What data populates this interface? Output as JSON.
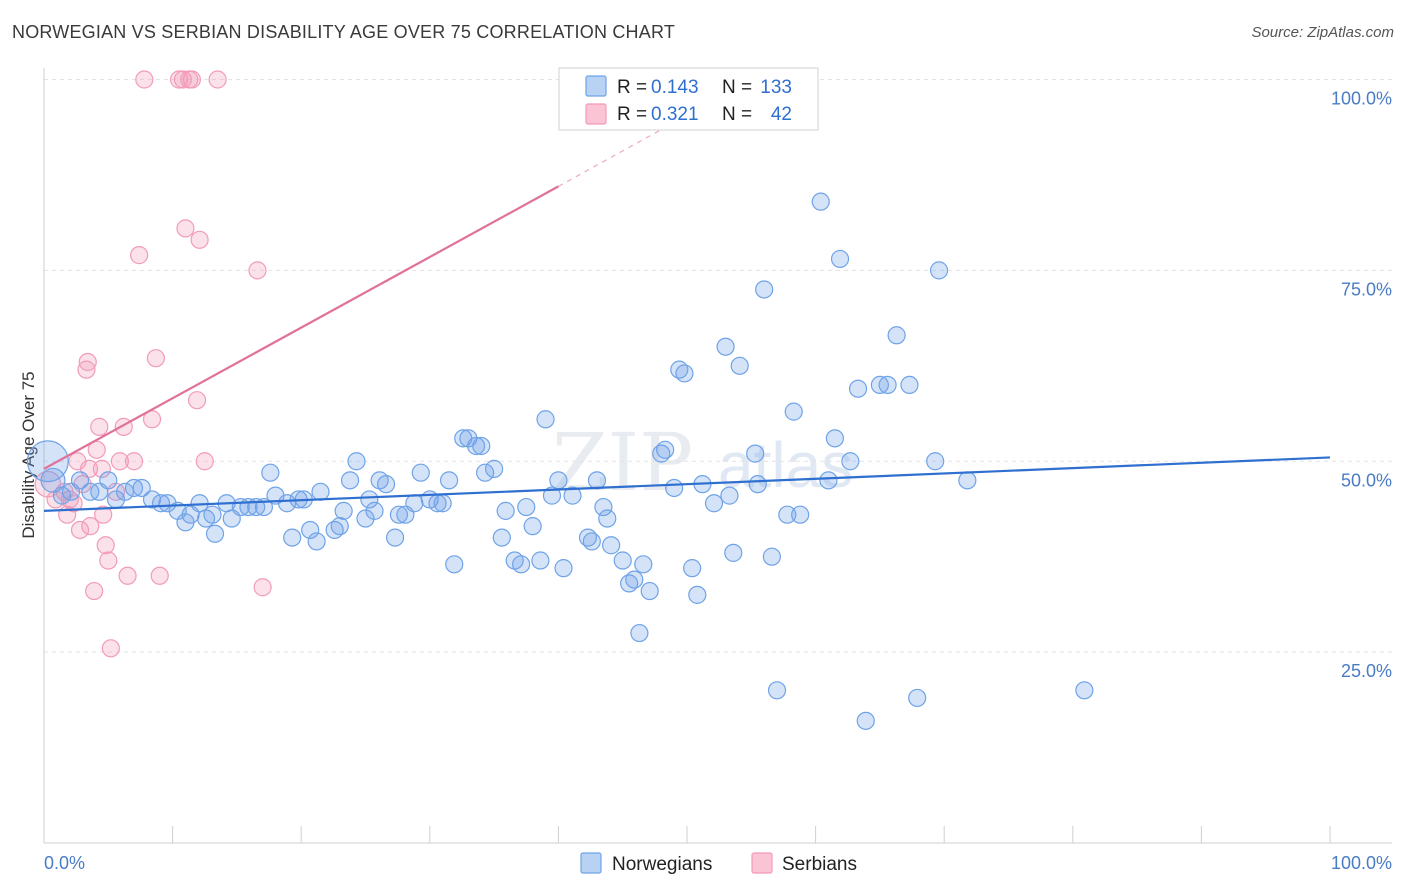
{
  "title": "NORWEGIAN VS SERBIAN DISABILITY AGE OVER 75 CORRELATION CHART",
  "source": "Source: ZipAtlas.com",
  "watermark": {
    "zip": "ZIP",
    "atlas": "atlas"
  },
  "legend": {
    "r_label": "R =",
    "n_label": "N =",
    "norwegians": {
      "r": "0.143",
      "n": "133"
    },
    "serbians": {
      "r": "0.321",
      "n": "42"
    }
  },
  "bottom_legend": {
    "norwegians": "Norwegians",
    "serbians": "Serbians"
  },
  "chart_data": {
    "type": "scatter",
    "title": "NORWEGIAN VS SERBIAN DISABILITY AGE OVER 75 CORRELATION CHART",
    "xlabel": "",
    "ylabel": "Disability Age Over 75",
    "xlim": [
      0,
      100
    ],
    "ylim": [
      0,
      103
    ],
    "x_tick_labels": [
      "0.0%",
      "100.0%"
    ],
    "y_ticks": [
      25,
      50,
      75,
      100
    ],
    "y_tick_labels": [
      "25.0%",
      "50.0%",
      "75.0%",
      "100.0%"
    ],
    "colors": {
      "norwegians": "#6fa3e8",
      "serbians": "#f29bb8",
      "norwegians_line": "#2f6fd0",
      "serbians_line": "#e0719a"
    },
    "series": [
      {
        "name": "Norwegians",
        "trend": {
          "x0": 0,
          "y0": 43.5,
          "x1": 100,
          "y1": 50.5
        },
        "points": [
          [
            0.3,
            50,
            2.4
          ],
          [
            0.7,
            47.5,
            1.4
          ],
          [
            1.4,
            45.5,
            1
          ],
          [
            2.1,
            46,
            1
          ],
          [
            2.8,
            47.5,
            1
          ],
          [
            3.6,
            46,
            1
          ],
          [
            4.3,
            46,
            1
          ],
          [
            5,
            47.5,
            1
          ],
          [
            5.6,
            45,
            1
          ],
          [
            6.3,
            46,
            1
          ],
          [
            7,
            46.5,
            1
          ],
          [
            7.6,
            46.5,
            1
          ],
          [
            8.4,
            45,
            1
          ],
          [
            9.1,
            44.5,
            1
          ],
          [
            9.6,
            44.5,
            1
          ],
          [
            10.4,
            43.5,
            1
          ],
          [
            11,
            42,
            1
          ],
          [
            11.4,
            43,
            1
          ],
          [
            12.1,
            44.5,
            1
          ],
          [
            12.6,
            42.5,
            1
          ],
          [
            13.1,
            43,
            1
          ],
          [
            13.3,
            40.5,
            1
          ],
          [
            14.2,
            44.5,
            1
          ],
          [
            14.6,
            42.5,
            1
          ],
          [
            15.3,
            44,
            1
          ],
          [
            15.9,
            44,
            1
          ],
          [
            16.5,
            44,
            1
          ],
          [
            17.1,
            44,
            1
          ],
          [
            17.6,
            48.5,
            1
          ],
          [
            18,
            45.5,
            1
          ],
          [
            18.9,
            44.5,
            1
          ],
          [
            19.3,
            40,
            1
          ],
          [
            19.8,
            45,
            1
          ],
          [
            20.2,
            45,
            1
          ],
          [
            20.7,
            41,
            1
          ],
          [
            21.2,
            39.5,
            1
          ],
          [
            21.5,
            46,
            1
          ],
          [
            22.6,
            41,
            1
          ],
          [
            23,
            41.5,
            1
          ],
          [
            23.3,
            43.5,
            1
          ],
          [
            23.8,
            47.5,
            1
          ],
          [
            24.3,
            50,
            1
          ],
          [
            25,
            42.5,
            1
          ],
          [
            25.3,
            45,
            1
          ],
          [
            25.7,
            43.5,
            1
          ],
          [
            26.1,
            47.5,
            1
          ],
          [
            26.6,
            47,
            1
          ],
          [
            27.3,
            40,
            1
          ],
          [
            27.6,
            43,
            1
          ],
          [
            28.1,
            43,
            1
          ],
          [
            28.8,
            44.5,
            1
          ],
          [
            29.3,
            48.5,
            1
          ],
          [
            30,
            45,
            1
          ],
          [
            30.6,
            44.5,
            1
          ],
          [
            31,
            44.5,
            1
          ],
          [
            31.5,
            47.5,
            1
          ],
          [
            31.9,
            36.5,
            1
          ],
          [
            32.6,
            53,
            1
          ],
          [
            33,
            53,
            1
          ],
          [
            33.6,
            52,
            1
          ],
          [
            34,
            52,
            1
          ],
          [
            34.3,
            48.5,
            1
          ],
          [
            35,
            49,
            1
          ],
          [
            35.6,
            40,
            1
          ],
          [
            35.9,
            43.5,
            1
          ],
          [
            36.6,
            37,
            1
          ],
          [
            37.1,
            36.5,
            1
          ],
          [
            37.5,
            44,
            1
          ],
          [
            38,
            41.5,
            1
          ],
          [
            38.6,
            37,
            1
          ],
          [
            39,
            55.5,
            1
          ],
          [
            39.5,
            45.5,
            1
          ],
          [
            40,
            47.5,
            1
          ],
          [
            40.4,
            36,
            1
          ],
          [
            41.1,
            45.5,
            1
          ],
          [
            42.3,
            40,
            1
          ],
          [
            42.6,
            39.5,
            1
          ],
          [
            43,
            47.5,
            1
          ],
          [
            43.5,
            44,
            1
          ],
          [
            43.8,
            42.5,
            1
          ],
          [
            44.1,
            39,
            1
          ],
          [
            45,
            37,
            1
          ],
          [
            45.5,
            34,
            1
          ],
          [
            45.9,
            34.5,
            1
          ],
          [
            46.3,
            27.5,
            1
          ],
          [
            46.6,
            36.5,
            1
          ],
          [
            47.1,
            33,
            1
          ],
          [
            48,
            51,
            1
          ],
          [
            48.3,
            51.5,
            1
          ],
          [
            49,
            46.5,
            1
          ],
          [
            49.4,
            62,
            1
          ],
          [
            49.8,
            61.5,
            1
          ],
          [
            50.4,
            36,
            1
          ],
          [
            50.8,
            32.5,
            1
          ],
          [
            51.2,
            47,
            1
          ],
          [
            52.1,
            44.5,
            1
          ],
          [
            53,
            65,
            1
          ],
          [
            53.3,
            45.5,
            1
          ],
          [
            53.6,
            38,
            1
          ],
          [
            54.1,
            62.5,
            1
          ],
          [
            55.3,
            51,
            1
          ],
          [
            55.5,
            47,
            1
          ],
          [
            56,
            72.5,
            1
          ],
          [
            56.6,
            37.5,
            1
          ],
          [
            57,
            20,
            1
          ],
          [
            57.8,
            43,
            1
          ],
          [
            58.3,
            56.5,
            1
          ],
          [
            58.8,
            43,
            1
          ],
          [
            60.4,
            84,
            1
          ],
          [
            61,
            47.5,
            1
          ],
          [
            61.5,
            53,
            1
          ],
          [
            61.9,
            76.5,
            1
          ],
          [
            62.7,
            50,
            1
          ],
          [
            63.9,
            16,
            1
          ],
          [
            63.3,
            59.5,
            1
          ],
          [
            65,
            60,
            1
          ],
          [
            65.6,
            60,
            1
          ],
          [
            66.3,
            66.5,
            1
          ],
          [
            67.3,
            60,
            1
          ],
          [
            67.9,
            19,
            1
          ],
          [
            69.3,
            50,
            1
          ],
          [
            69.6,
            75,
            1
          ],
          [
            71.8,
            47.5,
            1
          ],
          [
            80.9,
            20,
            1
          ]
        ]
      },
      {
        "name": "Serbians",
        "trend": {
          "x0": 0,
          "y0": 49,
          "x1": 40,
          "y1": 86,
          "x2": 50,
          "y2": 95.3
        },
        "points": [
          [
            0.3,
            47,
            1.5
          ],
          [
            0.9,
            45,
            1
          ],
          [
            1.6,
            46,
            1
          ],
          [
            1.8,
            43,
            1
          ],
          [
            2,
            45,
            1
          ],
          [
            2.3,
            44.5,
            1
          ],
          [
            2.6,
            50,
            1
          ],
          [
            2.8,
            41,
            1
          ],
          [
            3,
            47,
            1
          ],
          [
            3.3,
            62,
            1
          ],
          [
            3.4,
            63,
            1
          ],
          [
            3.5,
            49,
            1
          ],
          [
            3.6,
            41.5,
            1
          ],
          [
            3.9,
            33,
            1
          ],
          [
            4.1,
            51.5,
            1
          ],
          [
            4.3,
            54.5,
            1
          ],
          [
            4.5,
            49,
            1
          ],
          [
            4.6,
            43,
            1
          ],
          [
            4.8,
            39,
            1
          ],
          [
            5,
            37,
            1
          ],
          [
            5.2,
            25.5,
            1
          ],
          [
            5.6,
            46,
            1
          ],
          [
            5.9,
            50,
            1
          ],
          [
            6.2,
            54.5,
            1
          ],
          [
            6.5,
            35,
            1
          ],
          [
            7,
            50,
            1
          ],
          [
            7.4,
            77,
            1
          ],
          [
            7.8,
            100,
            1
          ],
          [
            8.4,
            55.5,
            1
          ],
          [
            8.7,
            63.5,
            1
          ],
          [
            9,
            35,
            1
          ],
          [
            10.5,
            100,
            1
          ],
          [
            10.8,
            100,
            1
          ],
          [
            11,
            80.5,
            1
          ],
          [
            11.3,
            100,
            1
          ],
          [
            11.5,
            100,
            1
          ],
          [
            11.9,
            58,
            1
          ],
          [
            12.1,
            79,
            1
          ],
          [
            12.5,
            50,
            1
          ],
          [
            13.5,
            100,
            1
          ],
          [
            16.6,
            75,
            1
          ],
          [
            17,
            33.5,
            1
          ]
        ]
      }
    ]
  }
}
